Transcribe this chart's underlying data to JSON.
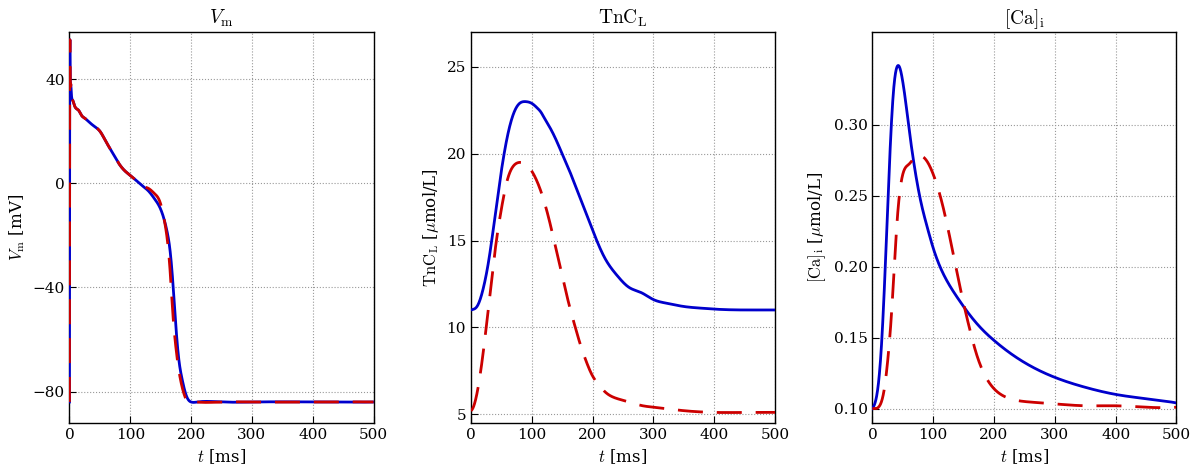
{
  "fig_width": 11.98,
  "fig_height": 4.73,
  "dpi": 100,
  "background_color": "#ffffff",
  "panel1": {
    "title": "$V_{\\mathrm{m}}$",
    "xlabel": "$t$ [ms]",
    "ylabel": "$V_{\\mathrm{m}}$ [mV]",
    "xlim": [
      0,
      500
    ],
    "ylim": [
      -92,
      58
    ],
    "xticks": [
      0,
      100,
      200,
      300,
      400,
      500
    ],
    "yticks": [
      -80,
      -40,
      0,
      40
    ],
    "blue_t": [
      0,
      0.5,
      1,
      2,
      3,
      5,
      8,
      10,
      15,
      20,
      25,
      30,
      40,
      50,
      60,
      70,
      80,
      90,
      100,
      110,
      120,
      130,
      140,
      150,
      160,
      165,
      170,
      175,
      180,
      185,
      190,
      195,
      200,
      210,
      250,
      300,
      400,
      500
    ],
    "blue_v": [
      -84,
      50,
      46,
      38,
      35,
      32,
      30,
      29,
      28,
      26,
      25,
      24,
      22,
      20,
      16,
      12,
      8,
      5,
      3,
      1,
      -1,
      -3,
      -6,
      -10,
      -18,
      -25,
      -38,
      -55,
      -68,
      -75,
      -80,
      -83,
      -84,
      -84,
      -84,
      -84,
      -84,
      -84
    ],
    "red_t": [
      0,
      0.5,
      1,
      2,
      3,
      5,
      8,
      10,
      15,
      20,
      25,
      30,
      40,
      50,
      60,
      70,
      80,
      90,
      100,
      110,
      120,
      130,
      140,
      150,
      155,
      160,
      165,
      170,
      175,
      180,
      185,
      190,
      195,
      200,
      210,
      250,
      300,
      400,
      500
    ],
    "red_v": [
      -84,
      50,
      46,
      38,
      35,
      32,
      30,
      29,
      28,
      26,
      25,
      24,
      22,
      20,
      16,
      12,
      8,
      5,
      3,
      1,
      -1,
      -2,
      -4,
      -8,
      -13,
      -20,
      -32,
      -50,
      -63,
      -72,
      -78,
      -82,
      -84,
      -84,
      -84,
      -84,
      -84,
      -84,
      -84
    ]
  },
  "panel2": {
    "title": "$\\mathrm{TnC}_{\\mathrm{L}}$",
    "xlabel": "$t$ [ms]",
    "ylabel": "$\\mathrm{TnC}_{\\mathrm{L}}$ [$\\mu$mol/L]",
    "xlim": [
      0,
      500
    ],
    "ylim": [
      4.5,
      27
    ],
    "xticks": [
      0,
      100,
      200,
      300,
      400,
      500
    ],
    "yticks": [
      5,
      10,
      15,
      20,
      25
    ],
    "blue_t": [
      0,
      5,
      10,
      20,
      30,
      40,
      50,
      60,
      70,
      80,
      90,
      100,
      110,
      115,
      120,
      130,
      140,
      150,
      160,
      170,
      180,
      190,
      200,
      220,
      240,
      260,
      280,
      300,
      320,
      350,
      380,
      400,
      450,
      500
    ],
    "blue_v": [
      11.0,
      11.05,
      11.2,
      12.2,
      14.0,
      16.5,
      19.0,
      21.0,
      22.3,
      22.9,
      23.0,
      22.9,
      22.6,
      22.4,
      22.1,
      21.5,
      20.8,
      20.0,
      19.2,
      18.3,
      17.4,
      16.5,
      15.6,
      14.0,
      13.0,
      12.3,
      12.0,
      11.6,
      11.4,
      11.2,
      11.1,
      11.05,
      11.0,
      11.0
    ],
    "red_t": [
      0,
      5,
      10,
      20,
      30,
      40,
      50,
      60,
      70,
      80,
      90,
      100,
      110,
      120,
      130,
      140,
      150,
      160,
      170,
      180,
      190,
      200,
      210,
      220,
      240,
      260,
      280,
      300,
      350,
      400,
      450,
      500
    ],
    "red_v": [
      5.2,
      5.5,
      6.2,
      8.5,
      11.5,
      14.5,
      16.8,
      18.5,
      19.3,
      19.5,
      19.4,
      19.0,
      18.3,
      17.3,
      16.0,
      14.5,
      13.0,
      11.5,
      10.2,
      9.0,
      8.0,
      7.2,
      6.7,
      6.3,
      5.9,
      5.7,
      5.5,
      5.4,
      5.2,
      5.1,
      5.1,
      5.1
    ]
  },
  "panel3": {
    "title": "$[\\mathrm{Ca}]_{\\mathrm{i}}$",
    "xlabel": "$t$ [ms]",
    "ylabel": "$[\\mathrm{Ca}]_{\\mathrm{i}}$ [$\\mu$mol/L]",
    "xlim": [
      0,
      500
    ],
    "ylim": [
      0.09,
      0.365
    ],
    "xticks": [
      0,
      100,
      200,
      300,
      400,
      500
    ],
    "yticks": [
      0.1,
      0.15,
      0.2,
      0.25,
      0.3
    ],
    "blue_t": [
      0,
      5,
      10,
      15,
      20,
      25,
      30,
      35,
      40,
      45,
      50,
      55,
      60,
      70,
      80,
      90,
      100,
      120,
      140,
      160,
      180,
      200,
      230,
      260,
      300,
      350,
      400,
      450,
      500
    ],
    "blue_v": [
      0.1,
      0.105,
      0.118,
      0.145,
      0.188,
      0.24,
      0.29,
      0.325,
      0.34,
      0.34,
      0.33,
      0.315,
      0.298,
      0.268,
      0.245,
      0.228,
      0.213,
      0.192,
      0.178,
      0.166,
      0.156,
      0.148,
      0.138,
      0.13,
      0.122,
      0.115,
      0.11,
      0.107,
      0.104
    ],
    "red_t": [
      0,
      5,
      10,
      15,
      20,
      25,
      30,
      35,
      40,
      50,
      60,
      70,
      80,
      90,
      100,
      110,
      115,
      120,
      130,
      140,
      150,
      160,
      170,
      180,
      200,
      220,
      250,
      280,
      310,
      350,
      400,
      450,
      500
    ],
    "red_v": [
      0.1,
      0.1,
      0.101,
      0.105,
      0.115,
      0.133,
      0.158,
      0.192,
      0.228,
      0.265,
      0.272,
      0.277,
      0.278,
      0.274,
      0.265,
      0.252,
      0.244,
      0.235,
      0.215,
      0.194,
      0.174,
      0.156,
      0.14,
      0.128,
      0.114,
      0.108,
      0.105,
      0.104,
      0.103,
      0.102,
      0.102,
      0.101,
      0.101
    ]
  },
  "blue_color": "#0000cc",
  "red_color": "#cc0000",
  "blue_lw": 2.0,
  "red_lw": 2.0,
  "red_dash": [
    9,
    5
  ],
  "grid_color": "#999999",
  "grid_style": ":",
  "grid_lw": 0.8,
  "title_fontsize": 14,
  "label_fontsize": 12,
  "tick_fontsize": 11
}
